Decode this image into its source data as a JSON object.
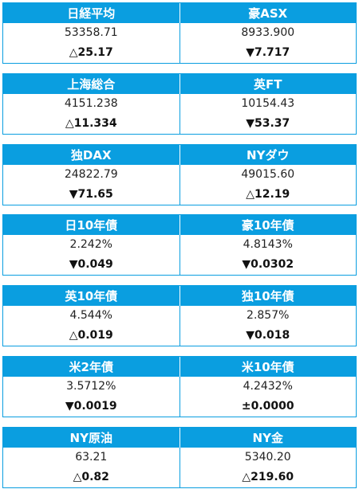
{
  "blocks": [
    {
      "cells": [
        {
          "name": "日経平均",
          "value": "53358.71",
          "change": "△25.17"
        },
        {
          "name": "豪ASX",
          "value": "8933.900",
          "change": "▼7.717"
        }
      ]
    },
    {
      "cells": [
        {
          "name": "上海総合",
          "value": "4151.238",
          "change": "△11.334"
        },
        {
          "name": "英FT",
          "value": "10154.43",
          "change": "▼53.37"
        }
      ]
    },
    {
      "cells": [
        {
          "name": "独DAX",
          "value": "24822.79",
          "change": "▼71.65"
        },
        {
          "name": "NYダウ",
          "value": "49015.60",
          "change": "△12.19"
        }
      ]
    },
    {
      "cells": [
        {
          "name": "日10年債",
          "value": "2.242%",
          "change": "▼0.049"
        },
        {
          "name": "豪10年債",
          "value": "4.8143%",
          "change": "▼0.0302"
        }
      ]
    },
    {
      "cells": [
        {
          "name": "英10年債",
          "value": "4.544%",
          "change": "△0.019"
        },
        {
          "name": "独10年債",
          "value": "2.857%",
          "change": "▼0.018"
        }
      ]
    },
    {
      "cells": [
        {
          "name": "米2年債",
          "value": "3.5712%",
          "change": "▼0.0019"
        },
        {
          "name": "米10年債",
          "value": "4.2432%",
          "change": "±0.0000"
        }
      ]
    },
    {
      "cells": [
        {
          "name": "NY原油",
          "value": "63.21",
          "change": "△0.82"
        },
        {
          "name": "NY金",
          "value": "5340.20",
          "change": "△219.60"
        }
      ]
    }
  ]
}
